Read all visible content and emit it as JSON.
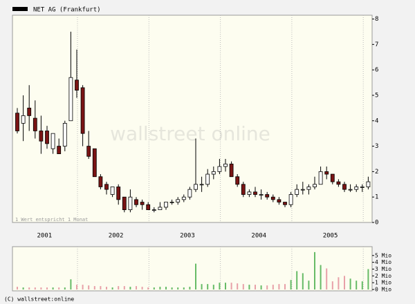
{
  "chart_data": [
    {
      "type": "candlestick",
      "legend": "NET AG (Frankfurt)",
      "legend_color": "#000000",
      "watermark": "wallstreet online",
      "annotation": "1 Wert entspricht 1 Monat",
      "footer": "(C) wallstreet:online",
      "years": [
        "2001",
        "2002",
        "2003",
        "2004",
        "2005"
      ],
      "up_color": "#ffffff",
      "down_color": "#7a1414",
      "open": [
        4.3,
        3.9,
        4.5,
        4.1,
        3.6,
        3.6,
        2.9,
        3.0,
        3.0,
        4.0,
        5.6,
        5.3,
        3.0,
        2.9,
        1.8,
        1.5,
        1.1,
        1.4,
        1.0,
        0.5,
        0.9,
        0.8,
        0.7,
        0.5,
        0.5,
        0.6,
        0.8,
        0.8,
        0.9,
        1.0,
        1.3,
        1.5,
        1.5,
        1.9,
        2.0,
        2.2,
        2.3,
        1.8,
        1.5,
        1.1,
        1.2,
        1.1,
        1.1,
        1.0,
        0.9,
        0.8,
        0.7,
        1.1,
        1.3,
        1.3,
        1.4,
        1.5,
        2.0,
        1.9,
        1.6,
        1.5,
        1.3,
        1.3,
        1.4,
        1.4
      ],
      "high": [
        4.5,
        5.0,
        5.4,
        4.8,
        4.2,
        3.8,
        3.5,
        3.3,
        4.0,
        7.5,
        6.8,
        5.4,
        3.6,
        2.9,
        1.9,
        1.6,
        1.4,
        1.5,
        1.0,
        1.3,
        1.0,
        0.9,
        0.8,
        0.6,
        0.8,
        0.8,
        0.9,
        1.0,
        1.1,
        1.4,
        3.3,
        1.8,
        2.1,
        2.2,
        2.5,
        2.5,
        2.4,
        1.9,
        1.6,
        1.3,
        1.4,
        1.3,
        1.2,
        1.1,
        1.0,
        0.8,
        1.2,
        1.5,
        1.6,
        1.5,
        1.8,
        2.2,
        2.2,
        1.9,
        1.7,
        1.6,
        1.5,
        1.5,
        1.5,
        1.8
      ],
      "low": [
        3.5,
        3.2,
        3.6,
        3.3,
        2.7,
        2.9,
        2.7,
        2.7,
        2.8,
        4.0,
        4.9,
        3.0,
        2.5,
        1.8,
        1.3,
        1.1,
        1.0,
        0.7,
        0.4,
        0.4,
        0.6,
        0.5,
        0.5,
        0.4,
        0.5,
        0.5,
        0.7,
        0.7,
        0.8,
        0.9,
        1.2,
        1.2,
        1.4,
        1.7,
        1.9,
        2.0,
        1.8,
        1.4,
        1.0,
        1.0,
        1.0,
        0.9,
        0.9,
        0.8,
        0.7,
        0.6,
        0.6,
        1.0,
        1.1,
        1.1,
        1.3,
        1.5,
        1.7,
        1.5,
        1.4,
        1.2,
        1.2,
        1.2,
        1.2,
        1.3
      ],
      "close": [
        3.6,
        4.2,
        4.2,
        3.6,
        3.2,
        3.1,
        3.5,
        2.7,
        3.9,
        5.7,
        5.2,
        3.5,
        2.6,
        1.8,
        1.4,
        1.3,
        1.4,
        0.9,
        0.5,
        1.0,
        0.7,
        0.7,
        0.5,
        0.5,
        0.6,
        0.8,
        0.8,
        0.9,
        1.0,
        1.3,
        1.5,
        1.5,
        1.9,
        2.0,
        2.2,
        2.3,
        1.8,
        1.5,
        1.1,
        1.2,
        1.1,
        1.1,
        1.0,
        0.9,
        0.8,
        0.7,
        1.1,
        1.3,
        1.3,
        1.4,
        1.5,
        2.0,
        1.9,
        1.6,
        1.5,
        1.3,
        1.3,
        1.4,
        1.4,
        1.6
      ],
      "ylim": [
        0,
        8.15
      ],
      "yticks": [
        0,
        1,
        2,
        3,
        4,
        5,
        6,
        7,
        8
      ]
    },
    {
      "type": "bar",
      "up_color": "#66bb66",
      "down_color": "#e8a0a8",
      "values": [
        0.4,
        0.3,
        0.3,
        0.3,
        0.3,
        0.3,
        0.3,
        0.3,
        0.3,
        1.5,
        0.7,
        0.7,
        0.6,
        0.5,
        0.5,
        0.4,
        0.3,
        0.5,
        0.5,
        0.4,
        0.5,
        0.4,
        0.3,
        0.3,
        0.4,
        0.4,
        0.3,
        0.3,
        0.3,
        0.4,
        3.8,
        0.8,
        0.8,
        0.7,
        1.0,
        1.0,
        1.0,
        0.9,
        0.8,
        0.7,
        0.7,
        0.6,
        0.6,
        0.7,
        0.8,
        0.8,
        1.4,
        2.7,
        2.4,
        1.3,
        5.5,
        3.6,
        3.1,
        1.2,
        1.8,
        2.0,
        1.6,
        1.3,
        1.2,
        3.0
      ],
      "ylim": [
        0,
        6.2
      ],
      "yticks": [
        {
          "value": 0,
          "label": "0 Mio"
        },
        {
          "value": 1,
          "label": "1 Mio"
        },
        {
          "value": 2,
          "label": "2 Mio"
        },
        {
          "value": 3,
          "label": "3 Mio"
        },
        {
          "value": 4,
          "label": "4 Mio"
        },
        {
          "value": 5,
          "label": "5 Mio"
        }
      ]
    }
  ]
}
